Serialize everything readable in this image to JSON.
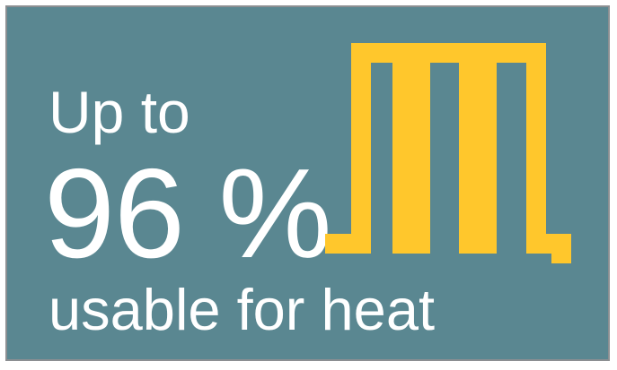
{
  "headline": {
    "prefix": "Up to",
    "value": "96 %",
    "suffix": "usable for heat"
  },
  "graphic": {
    "icon": "heating-coil-icon",
    "color": "#ffc72c"
  },
  "colors": {
    "background": "#5a8791",
    "border": "#8c8f92",
    "text": "#ffffff"
  }
}
